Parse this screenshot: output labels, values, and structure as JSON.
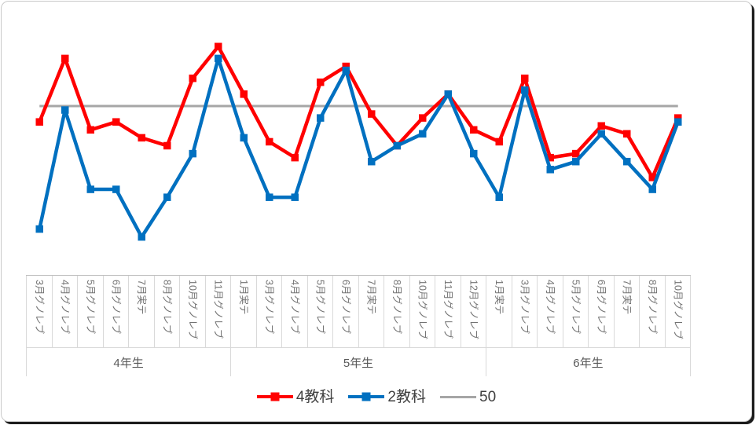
{
  "chart_data": {
    "type": "line",
    "title": "",
    "categories": [
      "3月グノレブ",
      "4月グノレブ",
      "5月グノレブ",
      "6月グノレブ",
      "7月実テ",
      "8月グノレブ",
      "10月グノレブ",
      "11月グノレブ",
      "1月実テ",
      "3月グノレブ",
      "4月グノレブ",
      "5月グノレブ",
      "6月グノレブ",
      "7月実テ",
      "8月グノレブ",
      "10月グノレブ",
      "11月グノレブ",
      "12月グノレブ",
      "1月実テ",
      "3月グノレブ",
      "4月グノレブ",
      "5月グノレブ",
      "6月グノレブ",
      "7月実テ",
      "8月グノレブ",
      "10月グノレブ"
    ],
    "category_groups": [
      {
        "label": "4年生",
        "span": 8
      },
      {
        "label": "5年生",
        "span": 10
      },
      {
        "label": "6年生",
        "span": 8
      }
    ],
    "series": [
      {
        "name": "4教科",
        "color": "#FF0000",
        "values": [
          48,
          56,
          47,
          48,
          46,
          45,
          53.5,
          57.5,
          51.5,
          45.5,
          43.5,
          53,
          55,
          49,
          45,
          48.5,
          51.5,
          47,
          45.5,
          53.5,
          43.5,
          44,
          47.5,
          46.5,
          41,
          48.5
        ]
      },
      {
        "name": "2教科",
        "color": "#0070C0",
        "values": [
          34.5,
          49.5,
          39.5,
          39.5,
          33.5,
          38.5,
          44,
          56,
          46,
          38.5,
          38.5,
          48.5,
          54.5,
          43,
          45,
          46.5,
          51.5,
          44,
          38.5,
          52,
          42,
          43,
          46.5,
          43,
          39.5,
          48
        ]
      }
    ],
    "reference_line": {
      "label": "50",
      "value": 50,
      "color": "#A6A6A6"
    },
    "y_axis": {
      "visible": false,
      "approx_range": [
        28.5,
        62.5
      ]
    },
    "grid": "off",
    "legend_position": "bottom",
    "axis_border_color": "#D9D9D9",
    "axis_text_color": "#737373"
  }
}
